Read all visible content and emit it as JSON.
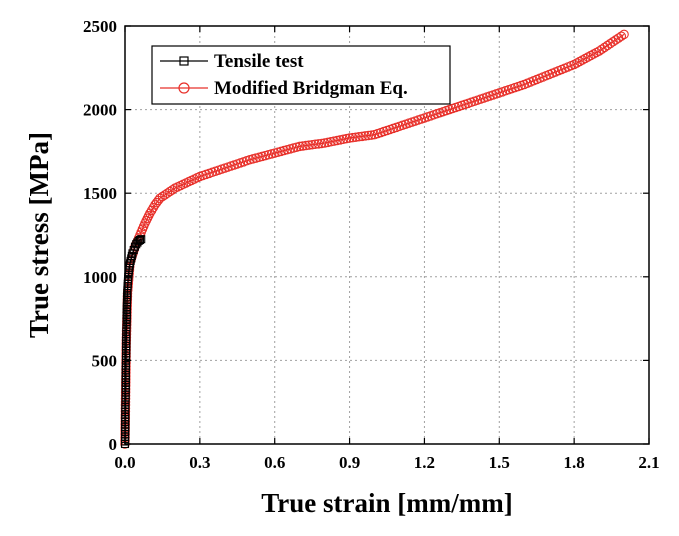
{
  "chart_data": {
    "type": "line",
    "xlabel": "True strain [mm/mm]",
    "ylabel": "True stress [MPa]",
    "xlim": [
      0,
      2.1
    ],
    "ylim": [
      0,
      2500
    ],
    "x_ticks": [
      "0.0",
      "0.3",
      "0.6",
      "0.9",
      "1.2",
      "1.5",
      "1.8",
      "2.1"
    ],
    "y_ticks": [
      "0",
      "500",
      "1000",
      "1500",
      "2000",
      "2500"
    ],
    "grid": true,
    "legend_position": "top-left",
    "series": [
      {
        "name": "Tensile test",
        "color": "#000000",
        "marker": "square",
        "x": [
          0,
          0.002,
          0.004,
          0.006,
          0.008,
          0.01,
          0.013,
          0.016,
          0.02,
          0.025,
          0.03,
          0.035,
          0.04,
          0.045,
          0.05,
          0.055,
          0.06,
          0.065
        ],
        "y": [
          0,
          250,
          500,
          700,
          850,
          930,
          1000,
          1040,
          1080,
          1110,
          1140,
          1160,
          1180,
          1195,
          1205,
          1215,
          1220,
          1225
        ]
      },
      {
        "name": "Modified Bridgman Eq.",
        "color": "#e8302a",
        "marker": "circle",
        "x": [
          0,
          0.005,
          0.01,
          0.02,
          0.04,
          0.06,
          0.08,
          0.1,
          0.12,
          0.14,
          0.2,
          0.3,
          0.4,
          0.5,
          0.6,
          0.7,
          0.8,
          0.9,
          1.0,
          1.1,
          1.2,
          1.3,
          1.4,
          1.5,
          1.6,
          1.7,
          1.8,
          1.9,
          2.0
        ],
        "y": [
          0,
          600,
          900,
          1080,
          1180,
          1250,
          1320,
          1380,
          1430,
          1470,
          1530,
          1600,
          1650,
          1700,
          1740,
          1780,
          1800,
          1830,
          1850,
          1900,
          1950,
          2000,
          2050,
          2100,
          2150,
          2210,
          2270,
          2350,
          2450
        ]
      }
    ]
  }
}
